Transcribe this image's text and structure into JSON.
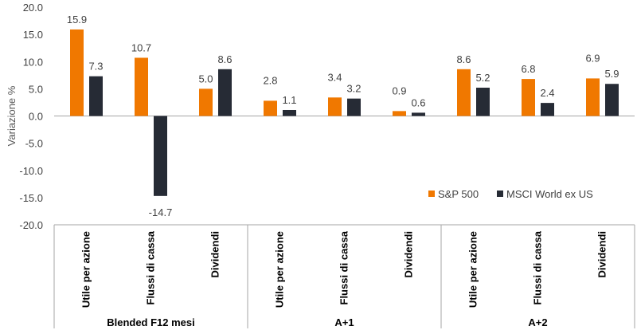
{
  "chart_data": {
    "type": "bar",
    "ylabel": "Variazione %",
    "ylim": [
      -20,
      20
    ],
    "y_ticks": [
      "20.0",
      "15.0",
      "10.0",
      "5.0",
      "0.0",
      "-5.0",
      "-10.0",
      "-15.0",
      "-20.0"
    ],
    "grid": false,
    "legend_position": "right",
    "categories": [
      "Utile per azione",
      "Flussi di cassa",
      "Dividendi",
      "Utile per azione",
      "Flussi di cassa",
      "Dividendi",
      "Utile per azione",
      "Flussi di cassa",
      "Dividendi"
    ],
    "groups": [
      {
        "label": "Blended F12 mesi",
        "size": 3
      },
      {
        "label": "A+1",
        "size": 3
      },
      {
        "label": "A+2",
        "size": 3
      }
    ],
    "series": [
      {
        "name": "S&P 500",
        "color": "#F07800",
        "values": [
          15.9,
          10.7,
          5.0,
          2.8,
          3.4,
          0.9,
          8.6,
          6.8,
          6.9
        ],
        "labels": [
          "15.9",
          "10.7",
          "5.0",
          "2.8",
          "3.4",
          "0.9",
          "8.6",
          "6.8",
          "6.9"
        ]
      },
      {
        "name": "MSCI World ex US",
        "color": "#262B35",
        "values": [
          7.3,
          -14.7,
          8.6,
          1.1,
          3.2,
          0.6,
          5.2,
          2.4,
          5.9
        ],
        "labels": [
          "7.3",
          "-14.7",
          "8.6",
          "1.1",
          "3.2",
          "0.6",
          "5.2",
          "2.4",
          "5.9"
        ]
      }
    ]
  }
}
